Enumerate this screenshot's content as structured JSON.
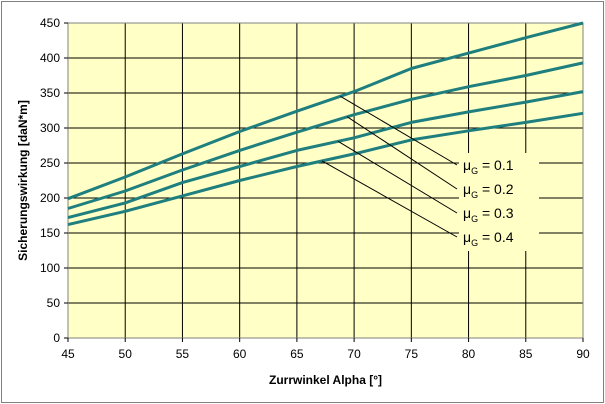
{
  "chart_data": {
    "type": "line",
    "xlabel": "Zurrwinkel Alpha [°]",
    "ylabel": "Sicherungswirkung [daN*m]",
    "xlim": [
      45,
      90
    ],
    "ylim": [
      0,
      450
    ],
    "x_ticks": [
      "45",
      "50",
      "55",
      "60",
      "65",
      "70",
      "75",
      "80",
      "85",
      "90"
    ],
    "y_ticks": [
      "0",
      "50",
      "100",
      "150",
      "200",
      "250",
      "300",
      "350",
      "400",
      "450"
    ],
    "grid": true,
    "colors": {
      "series": "#1f7f7f",
      "plot_bg": "#ffffc6",
      "grid": "#000000"
    },
    "x": [
      45,
      50,
      55,
      60,
      65,
      70,
      75,
      80,
      85,
      90
    ],
    "series": [
      {
        "name": "μG = 0.1",
        "label_main": "μ",
        "label_sub": "G",
        "label_rest": " = 0.1",
        "values": [
          199,
          230,
          263,
          295,
          324,
          352,
          385,
          407,
          429,
          450
        ]
      },
      {
        "name": "μG = 0.2",
        "label_main": "μ",
        "label_sub": "G",
        "label_rest": " = 0.2",
        "values": [
          185,
          210,
          240,
          268,
          294,
          319,
          341,
          359,
          375,
          393
        ]
      },
      {
        "name": "μG = 0.3",
        "label_main": "μ",
        "label_sub": "G",
        "label_rest": " = 0.3",
        "values": [
          172,
          193,
          222,
          245,
          268,
          286,
          308,
          323,
          337,
          352
        ]
      },
      {
        "name": "μG = 0.4",
        "label_main": "μ",
        "label_sub": "G",
        "label_rest": " = 0.4",
        "values": [
          162,
          181,
          203,
          225,
          245,
          263,
          283,
          296,
          308,
          321
        ]
      }
    ],
    "legend": "right"
  }
}
